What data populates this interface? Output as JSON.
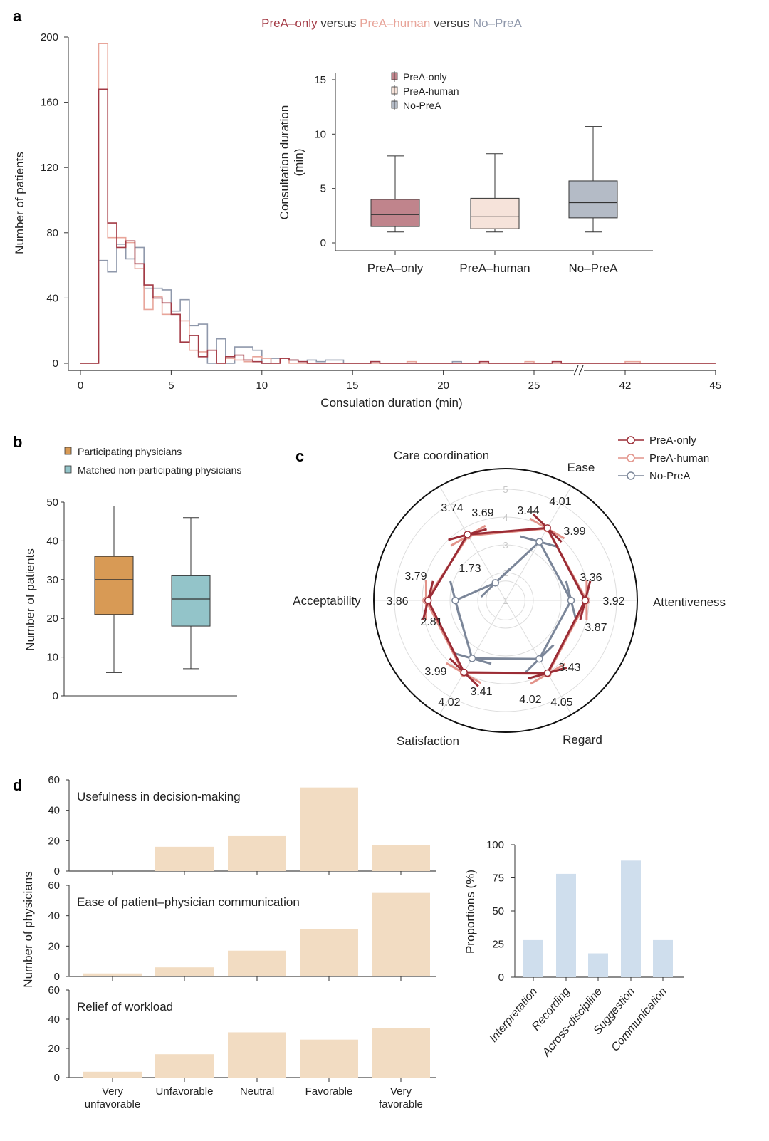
{
  "panel_labels": {
    "a": "a",
    "b": "b",
    "c": "c",
    "d": "d"
  },
  "colors": {
    "prea_only": "#a33a45",
    "prea_human": "#e8a59a",
    "no_prea": "#8f98ab",
    "box_prea_only": "#c0848c",
    "box_prea_human": "#f6e3da",
    "box_no_prea": "#b4bbc6",
    "participating": "#d89a55",
    "matched": "#93c4c9",
    "radar_prea_only": "#9b2c35",
    "radar_prea_human": "#e2938a",
    "radar_no_prea": "#7b8699",
    "survey_bar": "#f2dcc2",
    "proportion_bar": "#cfdeed"
  },
  "chart_data": [
    {
      "id": "a-histogram",
      "type": "histogram",
      "title_parts": [
        "PreA–only",
        " versus ",
        "PreA–human",
        " versus ",
        "No–PreA"
      ],
      "xlabel": "Consulation duration (min)",
      "ylabel": "Number of patients",
      "xticks": [
        0,
        5,
        10,
        15,
        20,
        25,
        42,
        45
      ],
      "axis_break": [
        27,
        41
      ],
      "yticks": [
        0,
        40,
        80,
        120,
        160,
        200
      ],
      "ylim": [
        0,
        200
      ],
      "bin_width": 0.5,
      "series": [
        {
          "name": "PreA-only",
          "start": 1.0,
          "counts": [
            168,
            86,
            71,
            75,
            61,
            48,
            40,
            37,
            30,
            13,
            17,
            4,
            8,
            0,
            4,
            5,
            2,
            1,
            0,
            0,
            3,
            2,
            1,
            0,
            0,
            0,
            0,
            0,
            0,
            0,
            1
          ],
          "extra": [
            [
              22.0,
              1
            ],
            [
              26.0,
              1
            ]
          ]
        },
        {
          "name": "PreA-human",
          "start": 1.0,
          "counts": [
            196,
            77,
            77,
            74,
            58,
            33,
            41,
            30,
            30,
            26,
            8,
            7,
            8,
            0,
            3,
            2,
            1,
            4,
            3,
            0,
            3,
            0,
            0,
            0,
            0,
            0,
            0,
            0
          ],
          "extra": [
            [
              18.0,
              1
            ],
            [
              24.5,
              1
            ],
            [
              42.0,
              1
            ]
          ]
        },
        {
          "name": "No-PreA",
          "start": 1.0,
          "counts": [
            63,
            56,
            73,
            64,
            71,
            46,
            46,
            45,
            32,
            39,
            23,
            24,
            0,
            15,
            0,
            10,
            10,
            8,
            0,
            3,
            3,
            2,
            1,
            2,
            1,
            2,
            2,
            0,
            0,
            0,
            1
          ],
          "extra": [
            [
              20.5,
              1
            ]
          ]
        }
      ]
    },
    {
      "id": "a-inset-box",
      "type": "box",
      "ylabel": "Consultation duration",
      "ylabel2": "(min)",
      "yticks": [
        0,
        5,
        10,
        15
      ],
      "ylim": [
        -0.7,
        15.9
      ],
      "groups": [
        {
          "name": "PreA-only",
          "label": "PreA–only",
          "whisker_low": 1.0,
          "q1": 1.5,
          "median": 2.6,
          "q3": 4.0,
          "whisker_high": 8.0
        },
        {
          "name": "PreA-human",
          "label": "PreA–human",
          "whisker_low": 1.0,
          "q1": 1.3,
          "median": 2.4,
          "q3": 4.1,
          "whisker_high": 8.2
        },
        {
          "name": "No-PreA",
          "label": "No–PreA",
          "whisker_low": 1.0,
          "q1": 2.3,
          "median": 3.7,
          "q3": 5.7,
          "whisker_high": 10.7
        }
      ],
      "legend": [
        "PreA-only",
        "PreA-human",
        "No-PreA"
      ],
      "legend_placement": "top-left"
    },
    {
      "id": "b-box",
      "type": "box",
      "ylabel": "Number of patients",
      "yticks": [
        0,
        10,
        20,
        30,
        40,
        50
      ],
      "ylim": [
        0,
        50
      ],
      "legend": [
        "Participating physicians",
        "Matched non-participating physicians"
      ],
      "legend_placement": "top",
      "groups": [
        {
          "name": "Participating physicians",
          "whisker_low": 6,
          "q1": 21,
          "median": 30,
          "q3": 36,
          "whisker_high": 49
        },
        {
          "name": "Matched non-participating physicians",
          "whisker_low": 7,
          "q1": 18,
          "median": 25,
          "q3": 31,
          "whisker_high": 46
        }
      ]
    },
    {
      "id": "c-radar",
      "type": "radar",
      "axes": [
        "Care coordination",
        "Ease",
        "Attentiveness",
        "Regard",
        "Satisfaction",
        "Acceptability"
      ],
      "ring_ticks": [
        "1",
        "2",
        "3",
        "4",
        "5"
      ],
      "range": [
        1,
        5
      ],
      "legend": [
        "PreA-only",
        "PreA-human",
        "No-PreA"
      ],
      "legend_placement": "top-right",
      "series": [
        {
          "name": "PreA-only",
          "values": [
            3.74,
            4.01,
            3.87,
            4.02,
            3.99,
            3.79
          ],
          "labels": [
            "3.74",
            "4.01",
            "3.87",
            "4.02",
            "3.99",
            "3.79"
          ]
        },
        {
          "name": "PreA-human",
          "values": [
            3.69,
            3.99,
            3.92,
            4.05,
            4.02,
            3.86
          ],
          "labels": [
            "3.69",
            "3.99",
            "3.92",
            "4.05",
            "4.02",
            "3.86"
          ]
        },
        {
          "name": "No-PreA",
          "values": [
            1.73,
            3.44,
            3.36,
            3.43,
            3.41,
            2.81
          ],
          "labels": [
            "1.73",
            "3.44",
            "3.36",
            "3.43",
            "3.41",
            "2.81"
          ]
        }
      ]
    },
    {
      "id": "d-survey",
      "type": "bar",
      "ylabel": "Number of physicians",
      "categories": [
        "Very unfavorable",
        "Unfavorable",
        "Neutral",
        "Favorable",
        "Very favorable"
      ],
      "category_lines": [
        [
          "Very",
          "unfavorable"
        ],
        [
          "Unfavorable"
        ],
        [
          "Neutral"
        ],
        [
          "Favorable"
        ],
        [
          "Very",
          "favorable"
        ]
      ],
      "yticks": [
        0,
        20,
        40,
        60
      ],
      "ylim": [
        0,
        60
      ],
      "panels": [
        {
          "title": "Usefulness in decision-making",
          "values": [
            0,
            16,
            23,
            55,
            17
          ]
        },
        {
          "title": "Ease of patient–physician communication",
          "values": [
            2,
            6,
            17,
            31,
            55
          ]
        },
        {
          "title": "Relief of workload",
          "values": [
            4,
            16,
            31,
            26,
            34
          ]
        }
      ]
    },
    {
      "id": "d-proportions",
      "type": "bar",
      "ylabel": "Proportions (%)",
      "categories": [
        "Interpretation",
        "Recording",
        "Across-discipline",
        "Suggestion",
        "Communication"
      ],
      "values": [
        28,
        78,
        18,
        88,
        28
      ],
      "yticks": [
        0,
        25,
        50,
        75,
        100
      ],
      "ylim": [
        0,
        100
      ]
    }
  ]
}
